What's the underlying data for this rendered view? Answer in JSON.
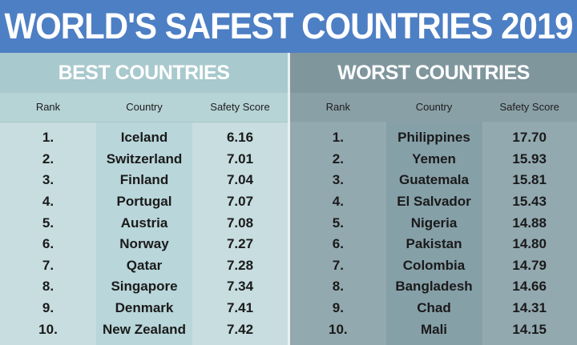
{
  "title": "WORLD'S SAFEST COUNTRIES 2019",
  "colors": {
    "title_bg": "#4d7fc4",
    "best_bg": "#c7dde0",
    "worst_bg": "#93a9b0"
  },
  "best": {
    "heading": "BEST COUNTRIES",
    "columns": [
      "Rank",
      "Country",
      "Safety Score"
    ],
    "rows": [
      {
        "rank": "1.",
        "country": "Iceland",
        "score": "6.16"
      },
      {
        "rank": "2.",
        "country": "Switzerland",
        "score": "7.01"
      },
      {
        "rank": "3.",
        "country": "Finland",
        "score": "7.04"
      },
      {
        "rank": "4.",
        "country": "Portugal",
        "score": "7.07"
      },
      {
        "rank": "5.",
        "country": "Austria",
        "score": "7.08"
      },
      {
        "rank": "6.",
        "country": "Norway",
        "score": "7.27"
      },
      {
        "rank": "7.",
        "country": "Qatar",
        "score": "7.28"
      },
      {
        "rank": "8.",
        "country": "Singapore",
        "score": "7.34"
      },
      {
        "rank": "9.",
        "country": "Denmark",
        "score": "7.41"
      },
      {
        "rank": "10.",
        "country": "New Zealand",
        "score": "7.42"
      }
    ]
  },
  "worst": {
    "heading": "WORST COUNTRIES",
    "columns": [
      "Rank",
      "Country",
      "Safety Score"
    ],
    "rows": [
      {
        "rank": "1.",
        "country": "Philippines",
        "score": "17.70"
      },
      {
        "rank": "2.",
        "country": "Yemen",
        "score": "15.93"
      },
      {
        "rank": "3.",
        "country": "Guatemala",
        "score": "15.81"
      },
      {
        "rank": "4.",
        "country": "El Salvador",
        "score": "15.43"
      },
      {
        "rank": "5.",
        "country": "Nigeria",
        "score": "14.88"
      },
      {
        "rank": "6.",
        "country": "Pakistan",
        "score": "14.80"
      },
      {
        "rank": "7.",
        "country": "Colombia",
        "score": "14.79"
      },
      {
        "rank": "8.",
        "country": "Bangladesh",
        "score": "14.66"
      },
      {
        "rank": "9.",
        "country": "Chad",
        "score": "14.31"
      },
      {
        "rank": "10.",
        "country": "Mali",
        "score": "14.15"
      }
    ]
  }
}
